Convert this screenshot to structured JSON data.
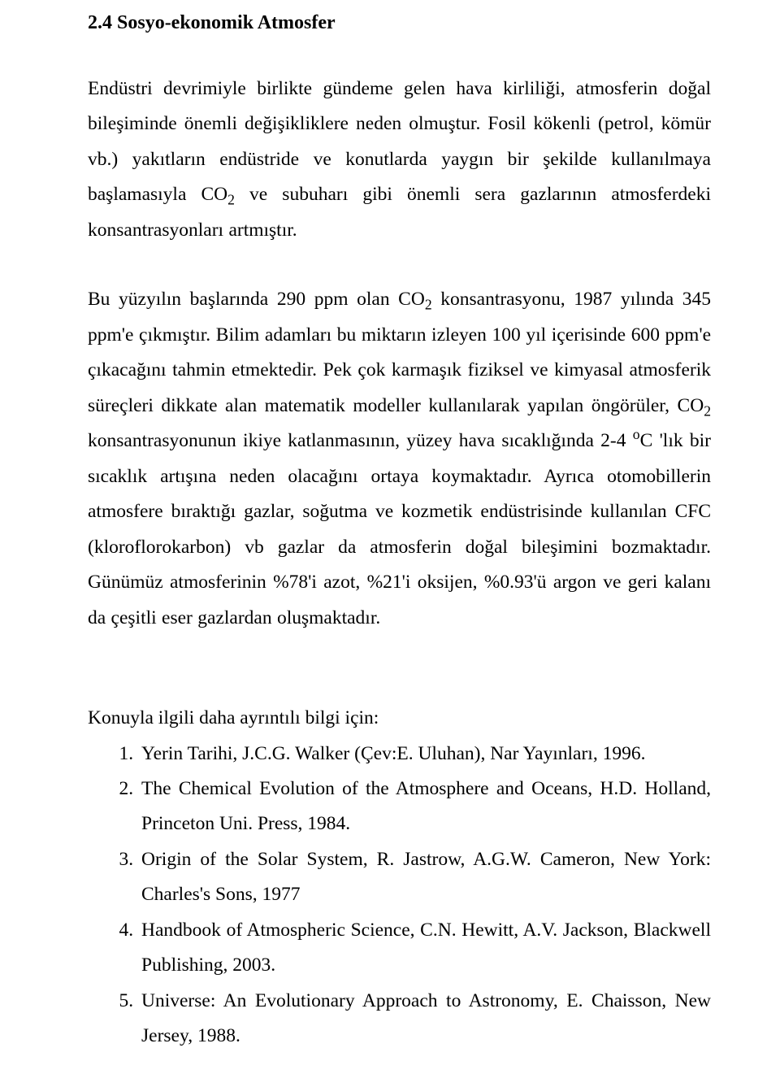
{
  "heading": "2.4 Sosyo-ekonomik Atmosfer",
  "p1a": "Endüstri devrimiyle birlikte gündeme gelen hava kirliliği, atmosferin doğal bileşiminde önemli değişikliklere neden olmuştur. Fosil kökenli (petrol, kömür vb.) yakıtların endüstride ve konutlarda yaygın bir şekilde kullanılmaya başlamasıyla CO",
  "p1b": " ve subuharı gibi önemli sera gazlarının atmosferdeki konsantrasyonları artmıştır.",
  "p2a": "Bu yüzyılın başlarında 290 ppm olan CO",
  "p2b": " konsantrasyonu, 1987 yılında 345 ppm'e çıkmıştır. Bilim adamları bu miktarın izleyen 100 yıl içerisinde 600 ppm'e çıkacağını tahmin etmektedir. Pek çok karmaşık fiziksel ve kimyasal atmosferik süreçleri dikkate alan matematik modeller kullanılarak yapılan öngörüler, CO",
  "p2c": "  konsantrasyonunun ikiye katlanmasının, yüzey hava sıcaklığında 2-4 ",
  "p2d": "C 'lık bir sıcaklık artışına neden olacağını ortaya koymaktadır.  Ayrıca otomobillerin atmosfere bıraktığı gazlar, soğutma ve kozmetik endüstrisinde kullanılan CFC (kloroflorokarbon) vb gazlar da atmosferin doğal bileşimini bozmaktadır. Günümüz atmosferinin %78'i azot, %21'i oksijen, %0.93'ü argon ve geri kalanı da çeşitli eser gazlardan oluşmaktadır.",
  "sub": "2",
  "degO": "o",
  "refsIntro": "Konuyla ilgili daha ayrıntılı bilgi için:",
  "refs": [
    "Yerin Tarihi, J.C.G. Walker (Çev:E. Uluhan), Nar Yayınları, 1996.",
    "The Chemical Evolution of the Atmosphere and Oceans, H.D. Holland, Princeton Uni. Press, 1984.",
    "Origin of the Solar System, R. Jastrow, A.G.W. Cameron, New York: Charles's Sons, 1977",
    "Handbook of Atmospheric Science, C.N. Hewitt, A.V. Jackson, Blackwell Publishing, 2003.",
    "Universe: An Evolutionary Approach to Astronomy, E. Chaisson, New Jersey, 1988."
  ]
}
